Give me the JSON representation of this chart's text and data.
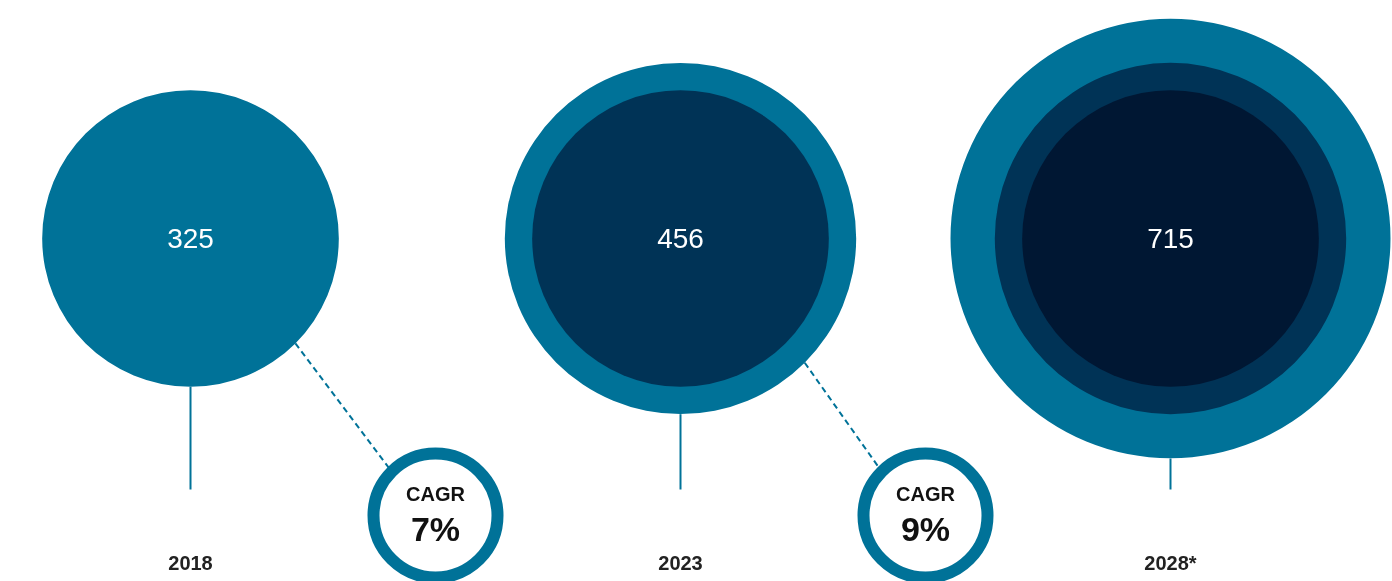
{
  "chart_data": {
    "type": "other",
    "categories": [
      "2018",
      "2023",
      "2028*"
    ],
    "values": [
      325,
      456,
      715
    ],
    "colors": [
      "#007298",
      "#003356",
      "#001733"
    ],
    "data_labels": true,
    "annotations": [
      "CAGR\n7%",
      "CAGR\n9%"
    ]
  }
}
